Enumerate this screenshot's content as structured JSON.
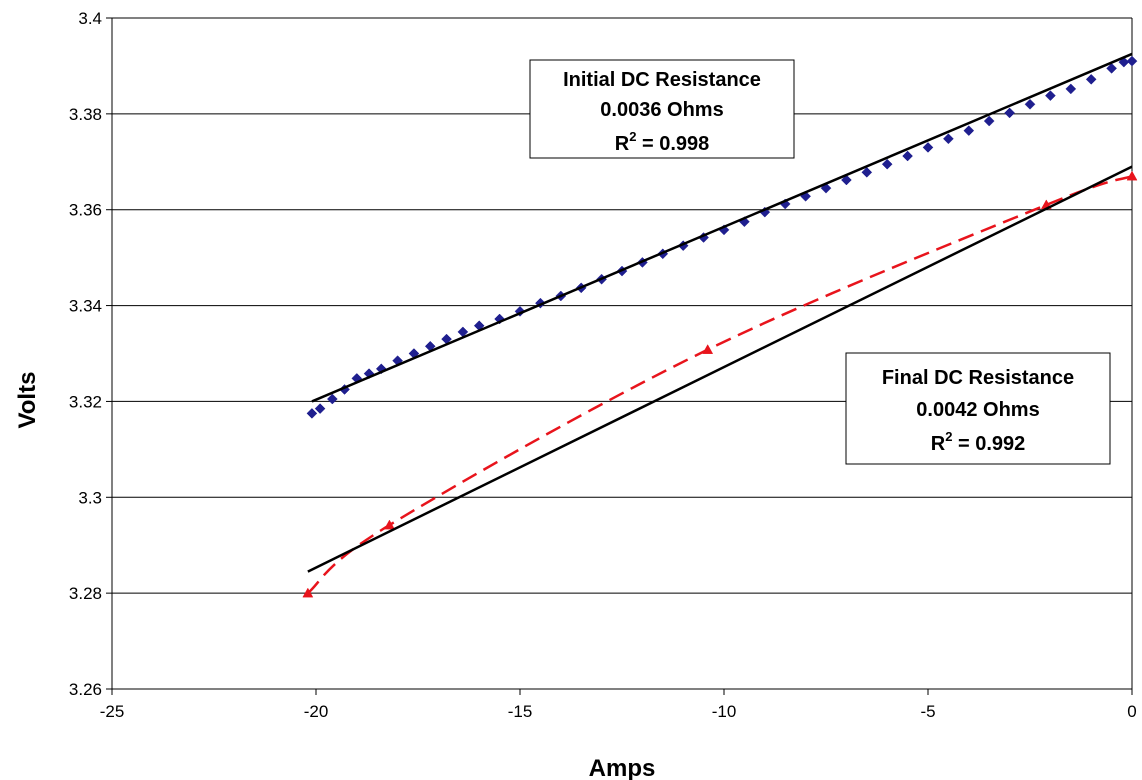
{
  "chart_data": {
    "type": "scatter",
    "xlabel": "Amps",
    "ylabel": "Volts",
    "xlim": [
      -25,
      0
    ],
    "ylim": [
      3.26,
      3.4
    ],
    "x_ticks": [
      -25,
      -20,
      -15,
      -10,
      -5,
      0
    ],
    "y_ticks": [
      3.26,
      3.28,
      3.3,
      3.32,
      3.34,
      3.36,
      3.38,
      3.4
    ],
    "x_tick_labels": [
      "-25",
      "-20",
      "-15",
      "-10",
      "-5",
      "0"
    ],
    "y_tick_labels": [
      "3.26",
      "3.28",
      "3.3",
      "3.32",
      "3.34",
      "3.36",
      "3.38",
      "3.4"
    ],
    "grid": "horizontal",
    "colors": {
      "initial": "#1f1f8f",
      "final": "#e8141c",
      "trend": "#000000",
      "grid": "#000000"
    },
    "series": [
      {
        "marker": "diamond",
        "line": "none",
        "x": [
          -20.1,
          -19.9,
          -19.6,
          -19.3,
          -19.0,
          -18.7,
          -18.4,
          -18.0,
          -17.6,
          -17.2,
          -16.8,
          -16.4,
          -16.0,
          -15.5,
          -15.0,
          -14.5,
          -14.0,
          -13.5,
          -13.0,
          -12.5,
          -12.0,
          -11.5,
          -11.0,
          -10.5,
          -10.0,
          -9.5,
          -9.0,
          -8.5,
          -8.0,
          -7.5,
          -7.0,
          -6.5,
          -6.0,
          -5.5,
          -5.0,
          -4.5,
          -4.0,
          -3.5,
          -3.0,
          -2.5,
          -2.0,
          -1.5,
          -1.0,
          -0.5,
          -0.2,
          0.0
        ],
        "y": [
          3.3175,
          3.3185,
          3.3205,
          3.3225,
          3.3248,
          3.3258,
          3.3268,
          3.3285,
          3.33,
          3.3315,
          3.333,
          3.3345,
          3.3358,
          3.3372,
          3.3388,
          3.3405,
          3.342,
          3.3437,
          3.3455,
          3.3472,
          3.349,
          3.3508,
          3.3525,
          3.3542,
          3.3558,
          3.3575,
          3.3595,
          3.3612,
          3.3628,
          3.3645,
          3.3662,
          3.3678,
          3.3695,
          3.3712,
          3.373,
          3.3748,
          3.3765,
          3.3785,
          3.3802,
          3.382,
          3.3838,
          3.3852,
          3.3872,
          3.3895,
          3.3908,
          3.391
        ]
      },
      {
        "marker": "triangle",
        "line": "dashed",
        "x": [
          -20.2,
          -18.2,
          -10.4,
          -2.1,
          0.0
        ],
        "y": [
          3.28,
          3.2942,
          3.3308,
          3.361,
          3.367
        ]
      }
    ],
    "trendlines": [
      {
        "x": [
          -20.1,
          0.0
        ],
        "y": [
          3.32,
          3.3925
        ]
      },
      {
        "x": [
          -20.2,
          0.0
        ],
        "y": [
          3.2845,
          3.369
        ]
      }
    ],
    "annotations": [
      {
        "line1": "Initial DC Resistance",
        "line2": "0.0036 Ohms",
        "line3_prefix": "R",
        "line3_sup": "2",
        "line3_suffix": " = 0.998"
      },
      {
        "line1": "Final DC Resistance",
        "line2": "0.0042 Ohms",
        "line3_prefix": "R",
        "line3_sup": "2",
        "line3_suffix": " = 0.992"
      }
    ]
  }
}
